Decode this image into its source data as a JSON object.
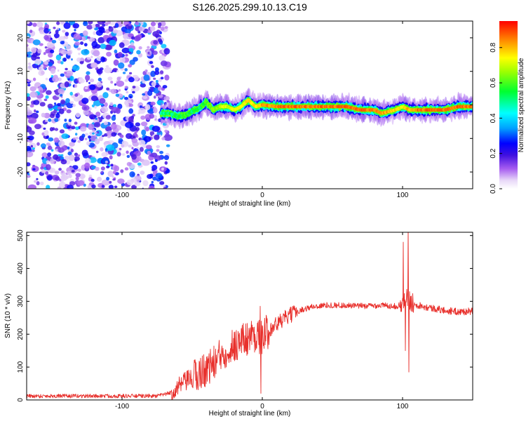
{
  "figure_title": "S126.2025.299.10.13.C19",
  "colors": {
    "background": "#ffffff",
    "axis": "#000000",
    "snr_line": "#e8302c",
    "colormap": [
      "#ffffff",
      "#dcc6f5",
      "#8a3cf0",
      "#4b0fd8",
      "#0000ff",
      "#00a0ff",
      "#00ffff",
      "#00ff40",
      "#c8ff00",
      "#ffff00",
      "#ff9000",
      "#ff0000"
    ]
  },
  "chart_data": [
    {
      "type": "heatmap",
      "title": "",
      "xlabel": "Height of straight line (km)",
      "ylabel": "Frequency (Hz)",
      "xlim": [
        -168,
        150
      ],
      "ylim": [
        -25,
        25
      ],
      "xticks": [
        -100,
        0,
        100
      ],
      "yticks": [
        -20,
        -10,
        0,
        10,
        20
      ],
      "colorbar": {
        "label": "Normalized spectral amplitude",
        "range": [
          0,
          0.95
        ],
        "ticks": [
          0.0,
          0.2,
          0.4,
          0.6,
          0.8
        ]
      },
      "noise_region": {
        "x_from": -168,
        "x_to": -70,
        "amplitude_range": [
          0.05,
          0.4
        ]
      },
      "ridge": {
        "height_km": [
          -72,
          -66,
          -60,
          -55,
          -50,
          -45,
          -40,
          -35,
          -30,
          -25,
          -20,
          -15,
          -10,
          -5,
          0,
          10,
          20,
          40,
          60,
          70,
          80,
          85,
          90,
          95,
          100,
          105,
          110,
          120,
          130,
          140,
          150
        ],
        "frequency_hz": [
          -2.5,
          -2.5,
          -3.5,
          -3.0,
          -2.0,
          -1.0,
          1.0,
          -1.5,
          -0.5,
          -0.5,
          -1.5,
          -0.5,
          1.5,
          -0.5,
          0.0,
          -0.5,
          -0.5,
          -0.5,
          -0.5,
          -1.5,
          -1.5,
          -2.5,
          -2.0,
          -1.5,
          -0.5,
          -1.5,
          -1.5,
          -1.5,
          -1.5,
          -0.5,
          -0.5
        ],
        "amplitude": [
          0.55,
          0.6,
          0.6,
          0.65,
          0.6,
          0.6,
          0.7,
          0.7,
          0.75,
          0.8,
          0.8,
          0.8,
          0.85,
          0.85,
          0.9,
          0.95,
          0.95,
          0.95,
          0.95,
          0.95,
          0.95,
          0.9,
          0.9,
          0.85,
          0.8,
          0.9,
          0.95,
          0.95,
          0.95,
          0.95,
          0.95
        ]
      }
    },
    {
      "type": "line",
      "title": "",
      "xlabel": "Height of straight line (km)",
      "ylabel": "SNR (10 * v/v)",
      "xlim": [
        -168,
        150
      ],
      "ylim": [
        0,
        510
      ],
      "xticks": [
        -100,
        0,
        100
      ],
      "yticks": [
        0,
        100,
        200,
        300,
        400,
        500
      ],
      "series": [
        {
          "name": "SNR",
          "x": [
            -168,
            -150,
            -130,
            -110,
            -90,
            -75,
            -65,
            -55,
            -45,
            -35,
            -25,
            -15,
            -5,
            0,
            5,
            15,
            25,
            35,
            45,
            55,
            65,
            75,
            85,
            95,
            100,
            103,
            105,
            110,
            120,
            130,
            140,
            150
          ],
          "y": [
            12,
            12,
            12,
            12,
            12,
            12,
            22,
            55,
            80,
            110,
            155,
            180,
            200,
            190,
            215,
            245,
            270,
            283,
            288,
            288,
            286,
            286,
            288,
            285,
            290,
            320,
            300,
            290,
            280,
            272,
            268,
            270
          ],
          "spikes": [
            {
              "x": -1.5,
              "y": 285
            },
            {
              "x": -1,
              "y": 20
            },
            {
              "x": 100.5,
              "y": 480
            },
            {
              "x": 102,
              "y": 150
            },
            {
              "x": 104,
              "y": 525
            },
            {
              "x": 104.5,
              "y": 85
            }
          ]
        }
      ]
    }
  ]
}
